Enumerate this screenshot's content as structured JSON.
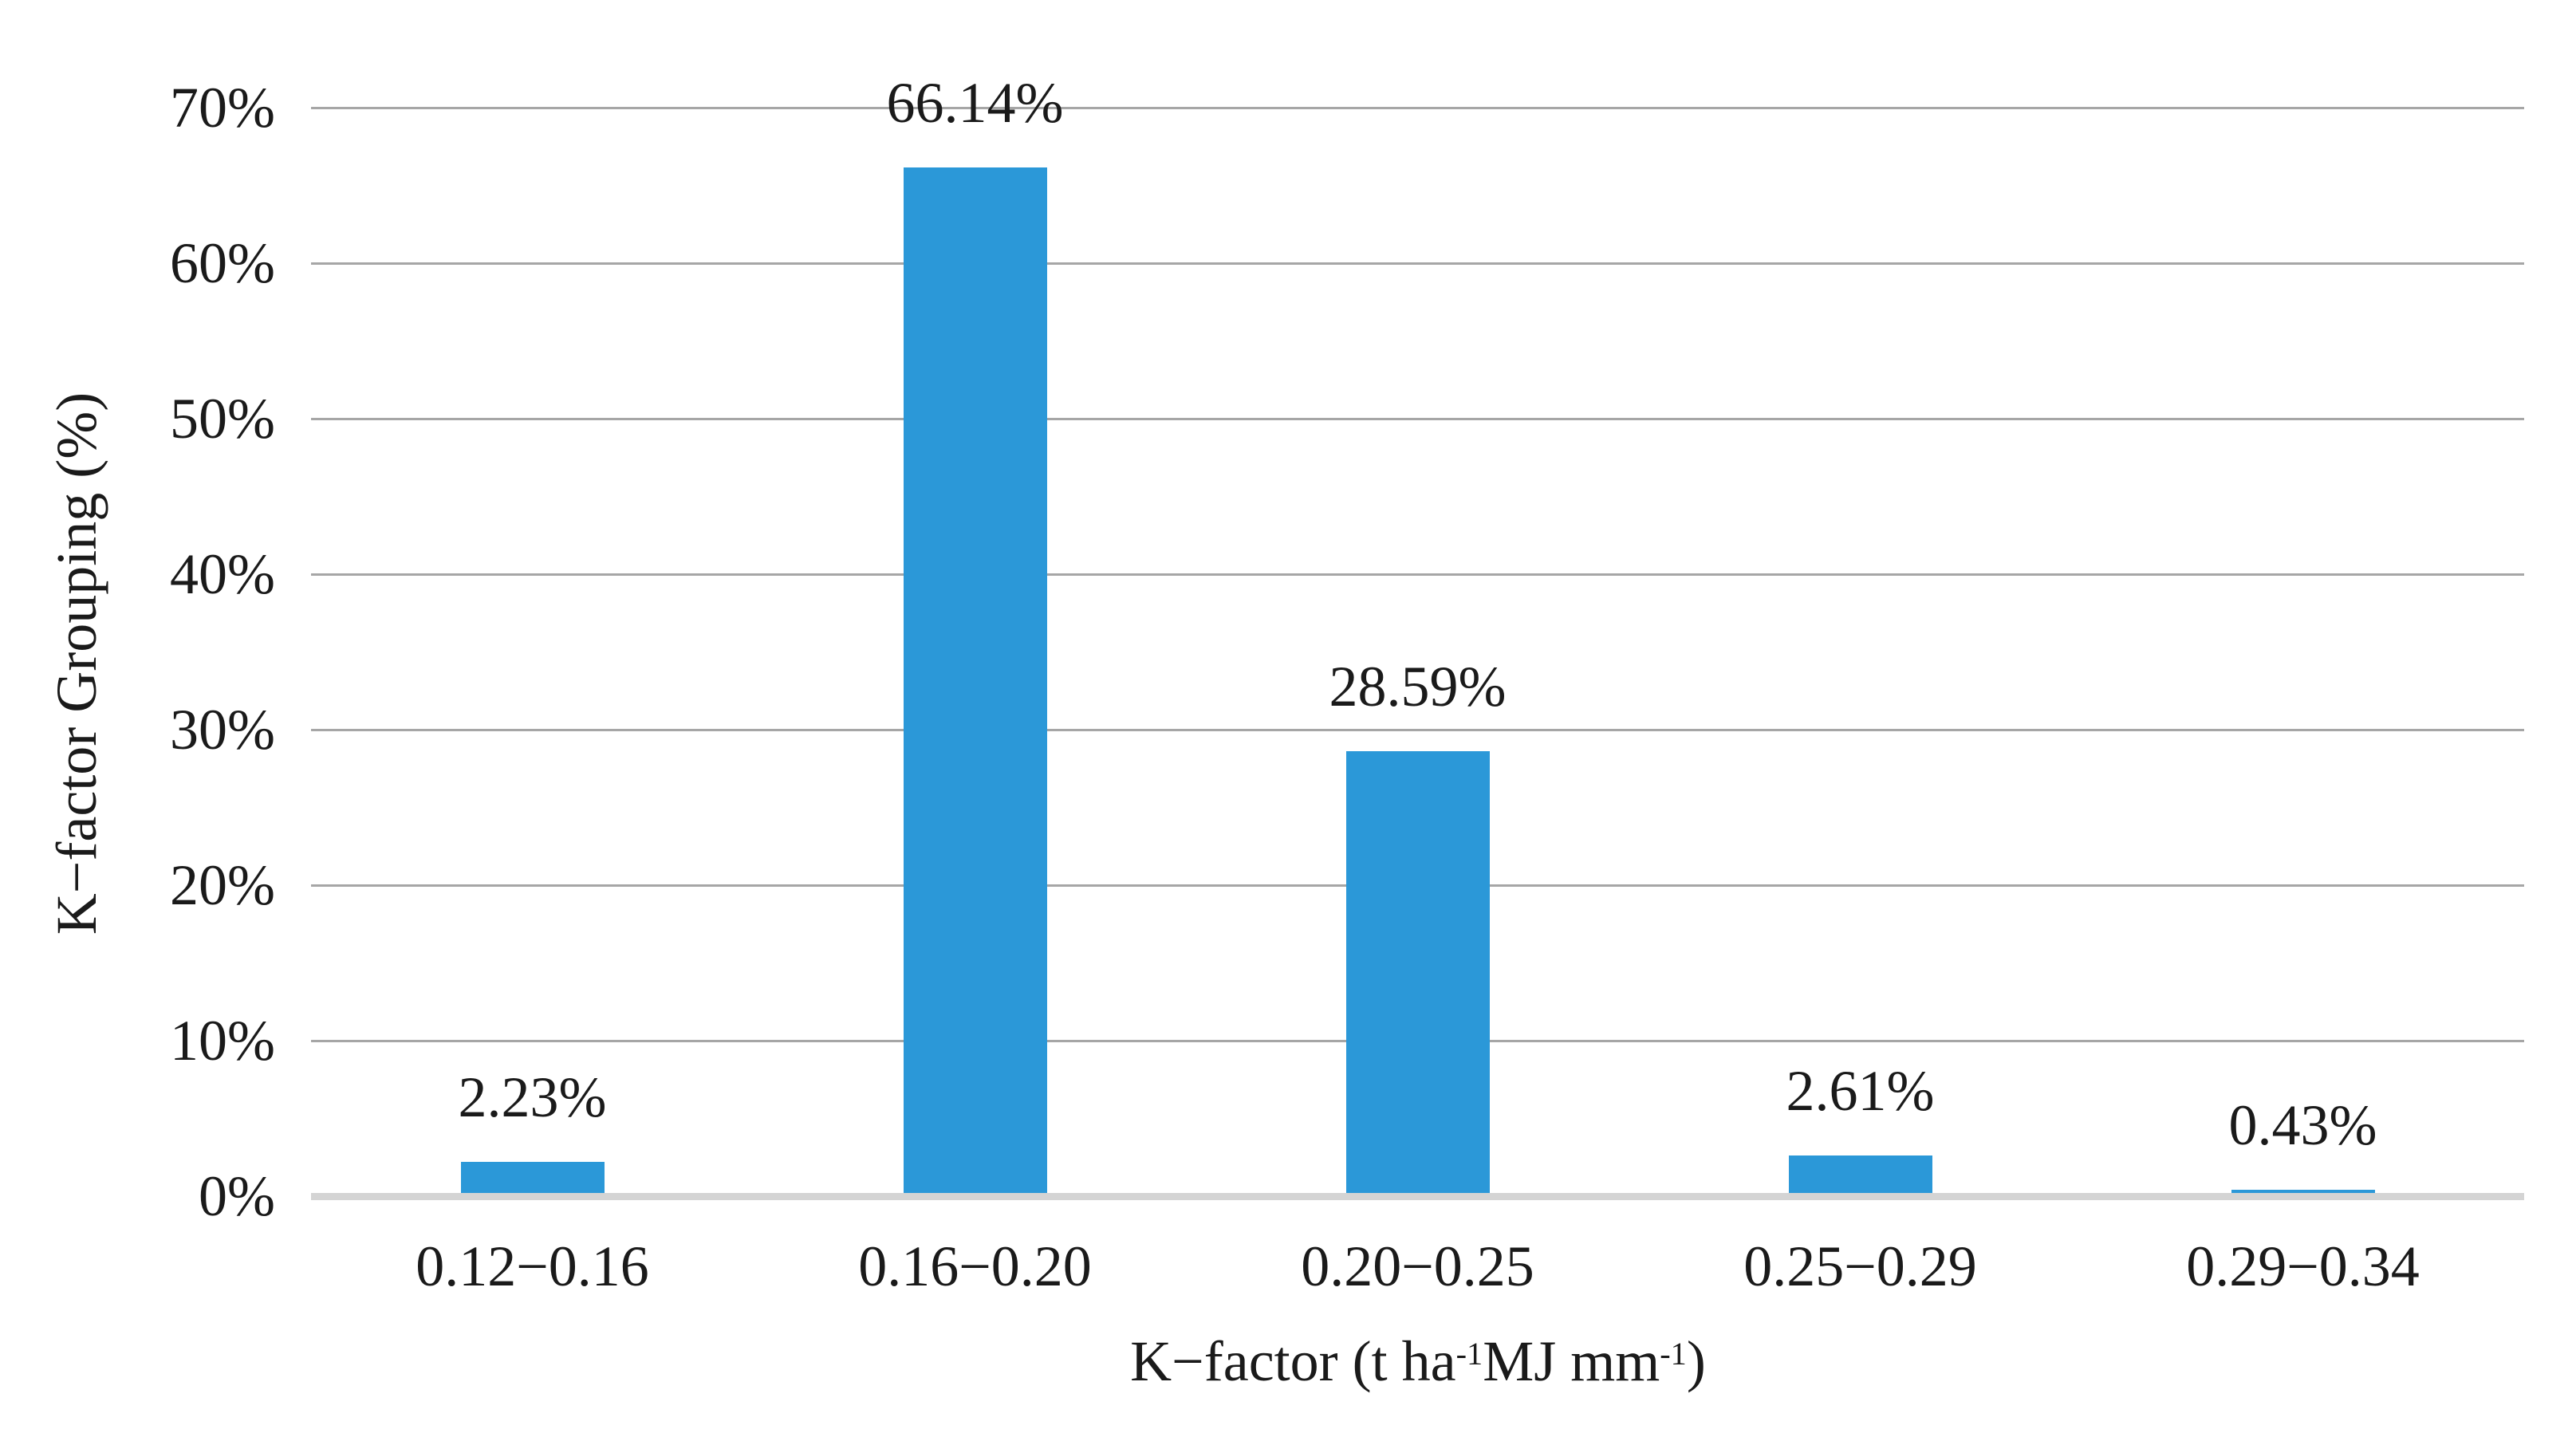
{
  "chart_data": {
    "type": "bar",
    "title": "",
    "categories": [
      "0.12−0.16",
      "0.16−0.20",
      "0.20−0.25",
      "0.25−0.29",
      "0.29−0.34"
    ],
    "values": [
      2.23,
      66.14,
      28.59,
      2.61,
      0.43
    ],
    "bar_labels": [
      "2.23%",
      "66.14%",
      "28.59%",
      "2.61%",
      "0.43%"
    ],
    "xlabel": "K−factor (t ha-1MJ mm-1)",
    "xlabel_parts": [
      {
        "text": "K−factor (t ha"
      },
      {
        "sup": "-1"
      },
      {
        "text": "MJ mm"
      },
      {
        "sup": "-1"
      },
      {
        "text": ")"
      }
    ],
    "ylabel": "K−factor Grouping (%)",
    "yticks": [
      "0%",
      "10%",
      "20%",
      "30%",
      "40%",
      "50%",
      "60%",
      "70%"
    ],
    "ylim": [
      0,
      70
    ],
    "grid": "horizontal",
    "legend_position": "none",
    "bar_color": "#2b98d8",
    "gridline_color": "#a6a6a6",
    "baseline_color": "#d4d4d4",
    "text_color": "#1a1a1a",
    "background_color": "#ffffff"
  }
}
